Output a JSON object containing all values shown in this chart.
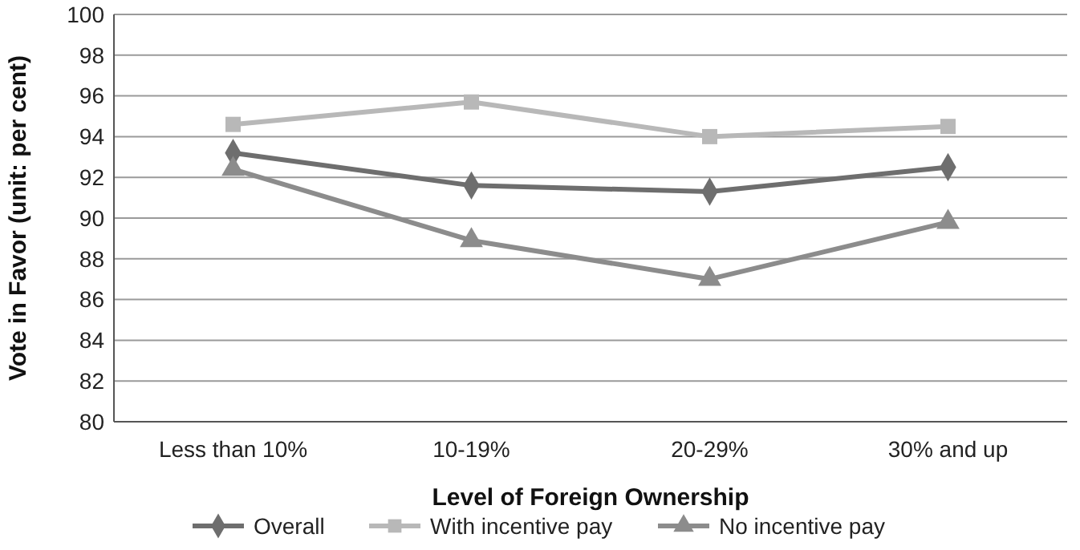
{
  "chart_data": {
    "type": "line",
    "xlabel": "Level of Foreign Ownership",
    "ylabel": "Vote in Favor (unit: per cent)",
    "categories": [
      "Less than 10%",
      "10-19%",
      "20-29%",
      "30% and up"
    ],
    "series": [
      {
        "name": "Overall",
        "color": "#6e6e6e",
        "marker": "diamond",
        "values": [
          93.2,
          91.6,
          91.3,
          92.5
        ]
      },
      {
        "name": "With incentive pay",
        "color": "#b8b8b8",
        "marker": "square",
        "values": [
          94.6,
          95.7,
          94.0,
          94.5
        ]
      },
      {
        "name": "No incentive pay",
        "color": "#8c8c8c",
        "marker": "triangle",
        "values": [
          92.4,
          88.9,
          87.0,
          89.8
        ]
      }
    ],
    "ylim": [
      80,
      100
    ],
    "yticks": [
      80,
      82,
      84,
      86,
      88,
      90,
      92,
      94,
      96,
      98,
      100
    ],
    "grid": "y",
    "legend": "bottom",
    "line_style": "solid"
  }
}
